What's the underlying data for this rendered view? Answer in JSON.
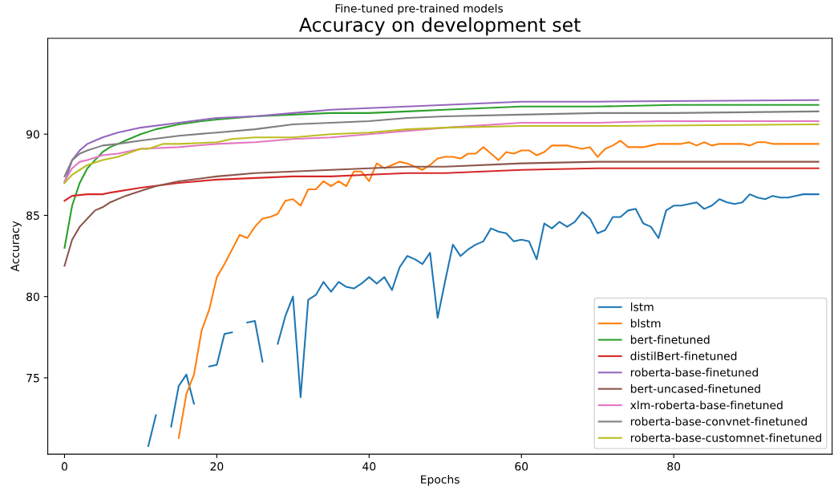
{
  "chart_data": {
    "type": "line",
    "title": "Accuracy on development set",
    "subtitle": "Fine-tuned pre-trained models",
    "xlabel": "Epochs",
    "ylabel": "Accuracy",
    "xlim": [
      -2.2,
      100.8
    ],
    "ylim": [
      70.3,
      95.9
    ],
    "xticks": [
      0,
      20,
      40,
      60,
      80
    ],
    "yticks": [
      75,
      80,
      85,
      90
    ],
    "grid": false,
    "legend": "bottom right",
    "series": [
      {
        "name": "lstm",
        "color": "#1f77b4",
        "x": [
          11,
          12,
          13,
          14,
          15,
          16,
          17,
          18,
          19,
          20,
          21,
          22,
          23,
          24,
          25,
          26,
          27,
          28,
          29,
          30,
          31,
          32,
          33,
          34,
          35,
          36,
          37,
          38,
          39,
          40,
          41,
          42,
          43,
          44,
          45,
          46,
          47,
          48,
          49,
          50,
          51,
          52,
          53,
          54,
          55,
          56,
          57,
          58,
          59,
          60,
          61,
          62,
          63,
          64,
          65,
          66,
          67,
          68,
          69,
          70,
          71,
          72,
          73,
          74,
          75,
          76,
          77,
          78,
          79,
          80,
          81,
          82,
          83,
          84,
          85,
          86,
          87,
          88,
          89,
          90,
          91,
          92,
          93,
          94,
          95,
          96,
          97,
          98,
          99
        ],
        "values": [
          70.8,
          72.7,
          null,
          72.0,
          74.5,
          75.2,
          73.4,
          null,
          75.7,
          75.8,
          77.7,
          77.8,
          null,
          78.4,
          78.5,
          76.0,
          null,
          77.1,
          78.8,
          80.0,
          73.8,
          79.8,
          80.1,
          80.9,
          80.3,
          80.9,
          80.6,
          80.5,
          80.8,
          81.2,
          80.8,
          81.2,
          80.4,
          81.8,
          82.5,
          82.3,
          82.0,
          82.7,
          78.7,
          81.0,
          83.2,
          82.5,
          82.9,
          83.2,
          83.4,
          84.2,
          84.0,
          83.9,
          83.4,
          83.5,
          83.4,
          82.3,
          84.5,
          84.2,
          84.6,
          84.3,
          84.6,
          85.2,
          84.8,
          83.9,
          84.1,
          84.9,
          84.9,
          85.3,
          85.4,
          84.5,
          84.3,
          83.6,
          85.3,
          85.6,
          85.6,
          85.7,
          85.8,
          85.4,
          85.6,
          86.0,
          85.8,
          85.7,
          85.8,
          86.3,
          86.1,
          86.0,
          86.2,
          86.1,
          86.1,
          86.2,
          86.3,
          86.3,
          86.3
        ]
      },
      {
        "name": "blstm",
        "color": "#ff7f0e",
        "x": [
          15,
          16,
          17,
          18,
          19,
          20,
          21,
          22,
          23,
          24,
          25,
          26,
          27,
          28,
          29,
          30,
          31,
          32,
          33,
          34,
          35,
          36,
          37,
          38,
          39,
          40,
          41,
          42,
          43,
          44,
          45,
          46,
          47,
          48,
          49,
          50,
          51,
          52,
          53,
          54,
          55,
          56,
          57,
          58,
          59,
          60,
          61,
          62,
          63,
          64,
          65,
          66,
          67,
          68,
          69,
          70,
          71,
          72,
          73,
          74,
          75,
          76,
          77,
          78,
          79,
          80,
          81,
          82,
          83,
          84,
          85,
          86,
          87,
          88,
          89,
          90,
          91,
          92,
          93,
          94,
          95,
          96,
          97,
          98,
          99
        ],
        "values": [
          71.3,
          74.0,
          75.2,
          77.9,
          79.2,
          81.2,
          82.0,
          82.9,
          83.8,
          83.6,
          84.3,
          84.8,
          84.9,
          85.1,
          85.9,
          86.0,
          85.6,
          86.6,
          86.6,
          87.1,
          86.8,
          87.1,
          86.8,
          87.7,
          87.7,
          87.1,
          88.2,
          87.9,
          88.1,
          88.3,
          88.2,
          88.0,
          87.8,
          88.1,
          88.5,
          88.6,
          88.6,
          88.5,
          88.8,
          88.8,
          89.2,
          88.8,
          88.4,
          88.9,
          88.8,
          89.0,
          89.0,
          88.7,
          88.9,
          89.3,
          89.3,
          89.3,
          89.2,
          89.1,
          89.2,
          88.6,
          89.1,
          89.3,
          89.6,
          89.2,
          89.2,
          89.2,
          89.3,
          89.4,
          89.4,
          89.4,
          89.4,
          89.5,
          89.3,
          89.5,
          89.3,
          89.4,
          89.4,
          89.4,
          89.4,
          89.3,
          89.5,
          89.5,
          89.4,
          89.4,
          89.4,
          89.4,
          89.4,
          89.4,
          89.4
        ]
      },
      {
        "name": "bert-finetuned",
        "color": "#2ca02c",
        "x": [
          0,
          1,
          2,
          3,
          4,
          5,
          6,
          7,
          8,
          9,
          10,
          12,
          15,
          18,
          20,
          25,
          30,
          35,
          40,
          45,
          50,
          60,
          70,
          80,
          99
        ],
        "values": [
          83.0,
          85.6,
          87.0,
          87.9,
          88.4,
          88.9,
          89.2,
          89.4,
          89.6,
          89.8,
          90.0,
          90.3,
          90.6,
          90.8,
          90.9,
          91.1,
          91.2,
          91.3,
          91.3,
          91.4,
          91.5,
          91.7,
          91.7,
          91.8,
          91.8
        ]
      },
      {
        "name": "distilBert-finetuned",
        "color": "#d62728",
        "x": [
          0,
          1,
          3,
          5,
          6,
          10,
          15,
          20,
          25,
          30,
          35,
          40,
          45,
          50,
          60,
          70,
          99
        ],
        "values": [
          85.9,
          86.2,
          86.3,
          86.3,
          86.4,
          86.7,
          87.0,
          87.2,
          87.3,
          87.4,
          87.4,
          87.5,
          87.6,
          87.6,
          87.8,
          87.9,
          87.9
        ]
      },
      {
        "name": "roberta-base-finetuned",
        "color": "#9467bd",
        "x": [
          0,
          1,
          2,
          3,
          4,
          5,
          7,
          10,
          15,
          20,
          25,
          30,
          35,
          40,
          45,
          50,
          60,
          70,
          99
        ],
        "values": [
          87.0,
          88.4,
          89.0,
          89.4,
          89.6,
          89.8,
          90.1,
          90.4,
          90.7,
          91.0,
          91.1,
          91.3,
          91.5,
          91.6,
          91.7,
          91.8,
          92.0,
          92.0,
          92.1
        ]
      },
      {
        "name": "bert-uncased-finetuned",
        "color": "#8c564b",
        "x": [
          0,
          1,
          2,
          3,
          4,
          5,
          6,
          8,
          10,
          12,
          15,
          20,
          25,
          30,
          35,
          40,
          45,
          50,
          60,
          70,
          99
        ],
        "values": [
          81.9,
          83.5,
          84.3,
          84.8,
          85.3,
          85.5,
          85.8,
          86.2,
          86.5,
          86.8,
          87.1,
          87.4,
          87.6,
          87.7,
          87.8,
          87.9,
          88.0,
          88.0,
          88.2,
          88.3,
          88.3
        ]
      },
      {
        "name": "xlm-roberta-base-finetuned",
        "color": "#e377c2",
        "x": [
          0,
          1,
          2,
          3,
          5,
          7,
          10,
          15,
          20,
          25,
          30,
          35,
          40,
          45,
          50,
          60,
          70,
          78,
          99
        ],
        "values": [
          87.1,
          87.9,
          88.3,
          88.4,
          88.7,
          88.8,
          89.1,
          89.2,
          89.4,
          89.5,
          89.7,
          89.8,
          90.0,
          90.2,
          90.4,
          90.7,
          90.7,
          90.8,
          90.8
        ]
      },
      {
        "name": "roberta-base-convnet-finetuned",
        "color": "#7f7f7f",
        "x": [
          0,
          1,
          2,
          3,
          5,
          7,
          10,
          15,
          20,
          25,
          30,
          35,
          40,
          45,
          50,
          60,
          70,
          80,
          99
        ],
        "values": [
          87.4,
          88.4,
          88.8,
          89.0,
          89.3,
          89.4,
          89.6,
          89.9,
          90.1,
          90.3,
          90.6,
          90.7,
          90.8,
          91.0,
          91.1,
          91.2,
          91.3,
          91.3,
          91.4
        ]
      },
      {
        "name": "roberta-base-customnet-finetuned",
        "color": "#bcbd22",
        "x": [
          0,
          1,
          2,
          3,
          5,
          7,
          10,
          11,
          13,
          15,
          20,
          22,
          25,
          30,
          35,
          40,
          45,
          50,
          60,
          70,
          99
        ],
        "values": [
          87.0,
          87.5,
          87.8,
          88.1,
          88.4,
          88.6,
          89.1,
          89.1,
          89.4,
          89.4,
          89.5,
          89.7,
          89.8,
          89.8,
          90.0,
          90.1,
          90.3,
          90.4,
          90.5,
          90.5,
          90.6
        ]
      }
    ]
  }
}
